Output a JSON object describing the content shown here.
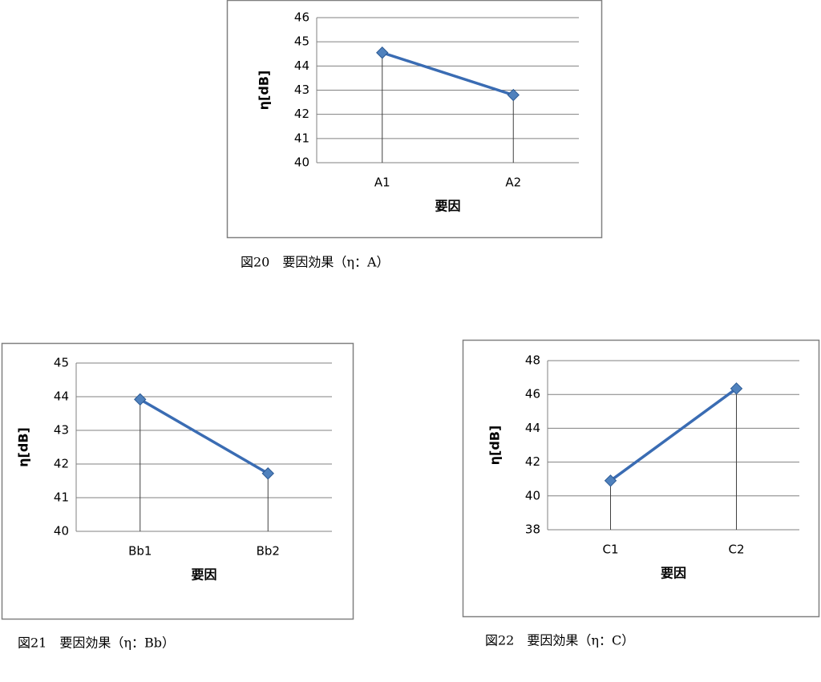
{
  "chart_data": [
    {
      "type": "line",
      "caption": "図20　要因効果（η：A）",
      "y_label": "η[dB]",
      "x_label": "要因",
      "categories": [
        "A1",
        "A2"
      ],
      "series": [
        {
          "color": "#4f81bd",
          "values": [
            44.55,
            42.8
          ]
        }
      ],
      "ylim": [
        40,
        46
      ],
      "yticks": [
        40,
        41,
        42,
        43,
        44,
        45,
        46
      ],
      "grid": true
    },
    {
      "type": "line",
      "caption": "図21　要因効果（η：Bb）",
      "y_label": "η[dB]",
      "x_label": "要因",
      "categories": [
        "Bb1",
        "Bb2"
      ],
      "series": [
        {
          "color": "#4f81bd",
          "values": [
            43.92,
            41.72
          ]
        }
      ],
      "ylim": [
        40,
        45
      ],
      "yticks": [
        40,
        41,
        42,
        43,
        44,
        45
      ],
      "grid": true
    },
    {
      "type": "line",
      "caption": "図22　要因効果（η：C）",
      "y_label": "η[dB]",
      "x_label": "要因",
      "categories": [
        "C1",
        "C2"
      ],
      "series": [
        {
          "color": "#4f81bd",
          "values": [
            40.9,
            46.35
          ]
        }
      ],
      "ylim": [
        38,
        48
      ],
      "yticks": [
        38,
        40,
        42,
        44,
        46,
        48
      ],
      "grid": true
    }
  ]
}
